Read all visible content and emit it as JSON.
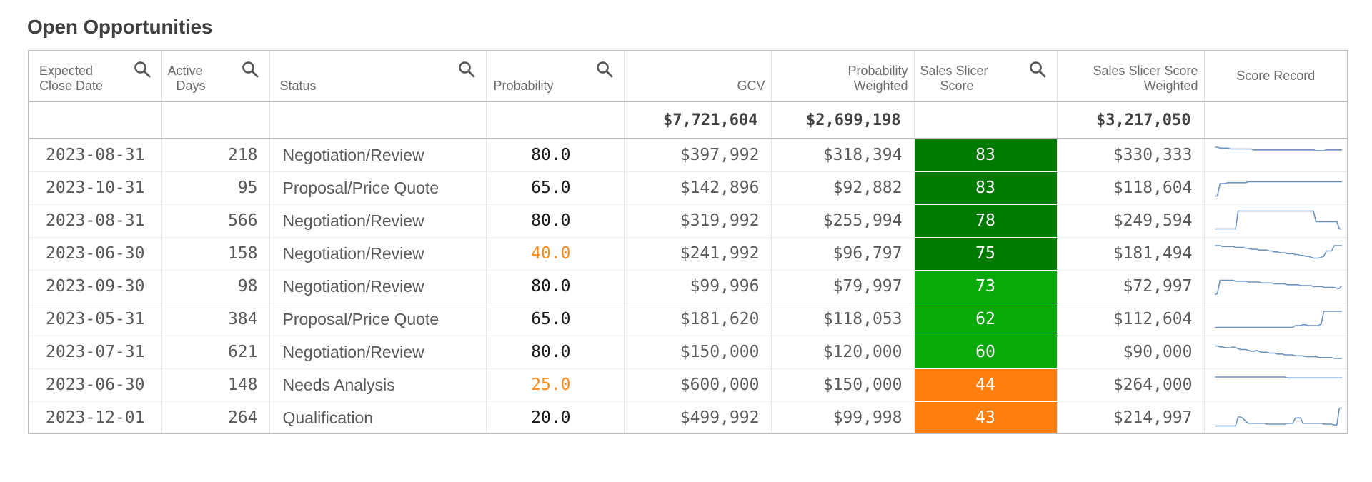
{
  "title": "Open Opportunities",
  "columns": [
    {
      "label": "Expected Close Date",
      "line1": "Expected",
      "line2": "Close Date",
      "searchable": true
    },
    {
      "label": "Active Days",
      "line1": "Active",
      "line2": "Days",
      "searchable": true
    },
    {
      "label": "Status",
      "line1": "",
      "line2": "Status",
      "searchable": true
    },
    {
      "label": "Probability",
      "line1": "",
      "line2": "Probability",
      "searchable": true
    },
    {
      "label": "GCV",
      "line1": "",
      "line2": "GCV",
      "searchable": false
    },
    {
      "label": "Probability Weighted",
      "line1": "Probability",
      "line2": "Weighted",
      "searchable": false
    },
    {
      "label": "Sales Slicer Score",
      "line1": "Sales Slicer",
      "line2": "Score",
      "searchable": true
    },
    {
      "label": "Sales Slicer Score Weighted",
      "line1": "Sales Slicer Score",
      "line2": "Weighted",
      "searchable": false
    },
    {
      "label": "Score Record",
      "line1": "",
      "line2": "Score Record",
      "searchable": false
    }
  ],
  "totals": {
    "gcv": "$7,721,604",
    "probability_weighted": "$2,699,198",
    "score_weighted": "$3,217,050"
  },
  "colors": {
    "dark_green": "#007a00",
    "green": "#08a908",
    "orange": "#ff7f0e",
    "warn_text": "#ff8c1a",
    "sparkline": "#6a93c2"
  },
  "rows": [
    {
      "close_date": "2023-08-31",
      "active_days": "218",
      "status": "Negotiation/Review",
      "probability": "80.0",
      "prob_warn": false,
      "gcv": "$397,992",
      "prob_weighted": "$318,394",
      "score": "83",
      "score_color": "#007a00",
      "score_weighted": "$330,333",
      "score_record": [
        20,
        20,
        19,
        19,
        19,
        19,
        18,
        18,
        18,
        18,
        18,
        18,
        18,
        18,
        18,
        17,
        17,
        17,
        17,
        17,
        17,
        17,
        17,
        17,
        17,
        17,
        17,
        17,
        17,
        17,
        17,
        17,
        17,
        17,
        17,
        17,
        17,
        17,
        17,
        16,
        16,
        16,
        16,
        17,
        17,
        17,
        17,
        17,
        17,
        17
      ]
    },
    {
      "close_date": "2023-10-31",
      "active_days": "95",
      "status": "Proposal/Price Quote",
      "probability": "65.0",
      "prob_warn": false,
      "gcv": "$142,896",
      "prob_weighted": "$92,882",
      "score": "83",
      "score_color": "#007a00",
      "score_weighted": "$118,604",
      "score_record": [
        2,
        2,
        16,
        16,
        16,
        17,
        17,
        17,
        17,
        17,
        17,
        17,
        17,
        18,
        18,
        18,
        18,
        18,
        18,
        18,
        18,
        18,
        18,
        18,
        18,
        18,
        18,
        18,
        18,
        18,
        18,
        18,
        18,
        18,
        18,
        18,
        18,
        18,
        18,
        18,
        18,
        18,
        18,
        18,
        18,
        18,
        18,
        18,
        18,
        18
      ]
    },
    {
      "close_date": "2023-08-31",
      "active_days": "566",
      "status": "Negotiation/Review",
      "probability": "80.0",
      "prob_warn": false,
      "gcv": "$319,992",
      "prob_weighted": "$255,994",
      "score": "78",
      "score_color": "#007a00",
      "score_weighted": "$249,594",
      "score_record": [
        2,
        2,
        2,
        2,
        2,
        2,
        2,
        2,
        2,
        22,
        22,
        22,
        22,
        22,
        22,
        22,
        22,
        22,
        22,
        22,
        22,
        22,
        22,
        22,
        22,
        22,
        22,
        22,
        22,
        22,
        22,
        22,
        22,
        22,
        22,
        22,
        22,
        22,
        22,
        10,
        10,
        10,
        10,
        10,
        10,
        10,
        10,
        10,
        2,
        2
      ]
    },
    {
      "close_date": "2023-06-30",
      "active_days": "158",
      "status": "Negotiation/Review",
      "probability": "40.0",
      "prob_warn": true,
      "gcv": "$241,992",
      "prob_weighted": "$96,797",
      "score": "75",
      "score_color": "#007a00",
      "score_weighted": "$181,494",
      "score_record": [
        20,
        20,
        20,
        19,
        19,
        19,
        19,
        19,
        18,
        18,
        18,
        18,
        17,
        17,
        16,
        16,
        16,
        15,
        15,
        15,
        15,
        14,
        14,
        13,
        13,
        12,
        12,
        12,
        11,
        11,
        11,
        10,
        10,
        9,
        9,
        8,
        8,
        7,
        6,
        6,
        6,
        7,
        8,
        14,
        14,
        14,
        20,
        20,
        20,
        20
      ]
    },
    {
      "close_date": "2023-09-30",
      "active_days": "98",
      "status": "Negotiation/Review",
      "probability": "80.0",
      "prob_warn": false,
      "gcv": "$99,996",
      "prob_weighted": "$79,997",
      "score": "73",
      "score_color": "#08a908",
      "score_weighted": "$72,997",
      "score_record": [
        2,
        3,
        18,
        18,
        18,
        18,
        18,
        18,
        17,
        17,
        17,
        17,
        17,
        16,
        16,
        16,
        16,
        16,
        15,
        15,
        15,
        15,
        15,
        14,
        14,
        14,
        14,
        14,
        13,
        13,
        13,
        13,
        13,
        12,
        12,
        12,
        12,
        12,
        11,
        11,
        11,
        11,
        10,
        10,
        10,
        10,
        10,
        9,
        9,
        12
      ]
    },
    {
      "close_date": "2023-05-31",
      "active_days": "384",
      "status": "Proposal/Price Quote",
      "probability": "65.0",
      "prob_warn": false,
      "gcv": "$181,620",
      "prob_weighted": "$118,053",
      "score": "62",
      "score_color": "#08a908",
      "score_weighted": "$112,604",
      "score_record": [
        2,
        2,
        2,
        2,
        2,
        2,
        2,
        2,
        2,
        2,
        2,
        2,
        2,
        2,
        2,
        2,
        2,
        2,
        2,
        2,
        2,
        2,
        2,
        2,
        2,
        2,
        2,
        2,
        2,
        2,
        2,
        4,
        4,
        4,
        5,
        5,
        4,
        4,
        4,
        4,
        4,
        6,
        20,
        20,
        20,
        20,
        20,
        20,
        20,
        20
      ]
    },
    {
      "close_date": "2023-07-31",
      "active_days": "621",
      "status": "Negotiation/Review",
      "probability": "80.0",
      "prob_warn": false,
      "gcv": "$150,000",
      "prob_weighted": "$120,000",
      "score": "60",
      "score_color": "#08a908",
      "score_weighted": "$90,000",
      "score_record": [
        18,
        18,
        17,
        17,
        16,
        16,
        16,
        17,
        16,
        15,
        14,
        14,
        14,
        13,
        12,
        12,
        13,
        12,
        11,
        11,
        11,
        10,
        10,
        10,
        9,
        9,
        9,
        8,
        8,
        8,
        8,
        7,
        7,
        7,
        7,
        6,
        6,
        6,
        6,
        6,
        5,
        5,
        5,
        5,
        5,
        5,
        4,
        4,
        4,
        4
      ]
    },
    {
      "close_date": "2023-06-30",
      "active_days": "148",
      "status": "Needs Analysis",
      "probability": "25.0",
      "prob_warn": true,
      "gcv": "$600,000",
      "prob_weighted": "$150,000",
      "score": "44",
      "score_color": "#ff7f0e",
      "score_weighted": "$264,000",
      "score_record": [
        20,
        20,
        20,
        20,
        20,
        20,
        20,
        20,
        20,
        20,
        20,
        20,
        20,
        20,
        20,
        20,
        20,
        20,
        20,
        20,
        20,
        20,
        20,
        20,
        20,
        20,
        20,
        20,
        19,
        19,
        19,
        19,
        19,
        19,
        19,
        19,
        19,
        19,
        19,
        19,
        19,
        19,
        19,
        19,
        19,
        19,
        19,
        19,
        19,
        19
      ]
    },
    {
      "close_date": "2023-12-01",
      "active_days": "264",
      "status": "Qualification",
      "probability": "20.0",
      "prob_warn": false,
      "gcv": "$499,992",
      "prob_weighted": "$99,998",
      "score": "43",
      "score_color": "#ff7f0e",
      "score_weighted": "$214,997",
      "score_record": [
        2,
        2,
        2,
        2,
        2,
        2,
        2,
        2,
        2,
        12,
        12,
        10,
        7,
        5,
        5,
        5,
        5,
        5,
        5,
        5,
        4,
        4,
        4,
        4,
        4,
        4,
        4,
        4,
        5,
        5,
        5,
        11,
        11,
        11,
        5,
        5,
        5,
        5,
        5,
        5,
        5,
        5,
        4,
        4,
        4,
        4,
        3,
        3,
        22,
        22
      ]
    }
  ]
}
